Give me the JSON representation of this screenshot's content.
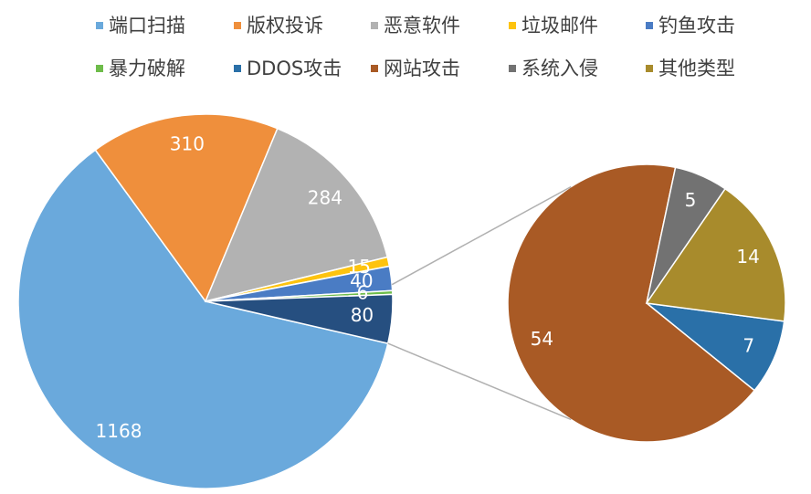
{
  "chart_data": {
    "type": "pie_of_pie",
    "categories": [
      "端口扫描",
      "版权投诉",
      "恶意软件",
      "垃圾邮件",
      "钓鱼攻击",
      "暴力破解",
      "DDOS攻击",
      "网站攻击",
      "系统入侵",
      "其他类型"
    ],
    "values": [
      1168,
      310,
      284,
      15,
      40,
      6,
      7,
      54,
      5,
      14
    ],
    "colors": [
      "#6aa9dc",
      "#ef8f3c",
      "#b2b2b2",
      "#fdc30f",
      "#4a7cc4",
      "#6ebc4a",
      "#2a70a8",
      "#a95a25",
      "#727272",
      "#a88b2c"
    ],
    "split_last": 4,
    "other_value": 80,
    "other_color": "#264f80",
    "legend": "top"
  }
}
